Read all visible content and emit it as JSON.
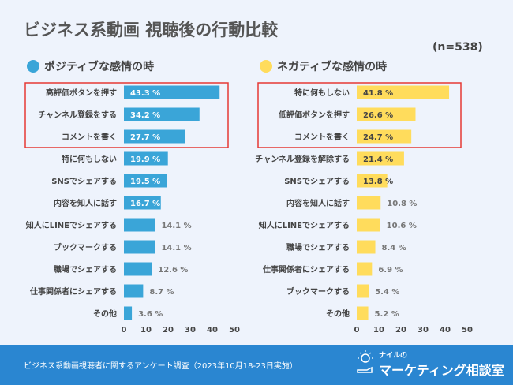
{
  "title": "ビジネス系動画 視聴後の行動比較",
  "sample": "(n=538)",
  "colors": {
    "positive": "#3aa5d8",
    "negative": "#ffdc5c",
    "highlight": "#e53935",
    "footer": "#2a86d1"
  },
  "chart_data": [
    {
      "type": "bar",
      "orientation": "horizontal",
      "legend": "ポジティブな感情の時",
      "xlim": [
        0,
        50
      ],
      "xticks": [
        0,
        10,
        20,
        30,
        40,
        50
      ],
      "highlighted_top": 3,
      "categories": [
        "高評価ボタンを押す",
        "チャンネル登録をする",
        "コメントを書く",
        "特に何もしない",
        "SNSでシェアする",
        "内容を知人に話す",
        "知人にLINEでシェアする",
        "ブックマークする",
        "職場でシェアする",
        "仕事関係者にシェアする",
        "その他"
      ],
      "values": [
        43.3,
        34.2,
        27.7,
        19.9,
        19.5,
        16.7,
        14.1,
        14.1,
        12.6,
        8.7,
        3.6
      ],
      "unit": "%"
    },
    {
      "type": "bar",
      "orientation": "horizontal",
      "legend": "ネガティブな感情の時",
      "xlim": [
        0,
        50
      ],
      "xticks": [
        0,
        10,
        20,
        30,
        40,
        50
      ],
      "highlighted_top": 3,
      "categories": [
        "特に何もしない",
        "低評価ボタンを押す",
        "コメントを書く",
        "チャンネル登録を解除する",
        "SNSでシェアする",
        "内容を知人に話す",
        "知人にLINEでシェアする",
        "職場でシェアする",
        "仕事関係者にシェアする",
        "ブックマークする",
        "その他"
      ],
      "values": [
        41.8,
        26.6,
        24.7,
        21.4,
        13.8,
        10.8,
        10.6,
        8.4,
        6.9,
        5.4,
        5.2
      ],
      "unit": "%"
    }
  ],
  "footer": {
    "source": "ビジネス系動画視聴者に関するアンケート調査（2023年10月18-23日実施）",
    "logo_small": "ナイルの",
    "logo_main": "マーケティング相談室"
  }
}
